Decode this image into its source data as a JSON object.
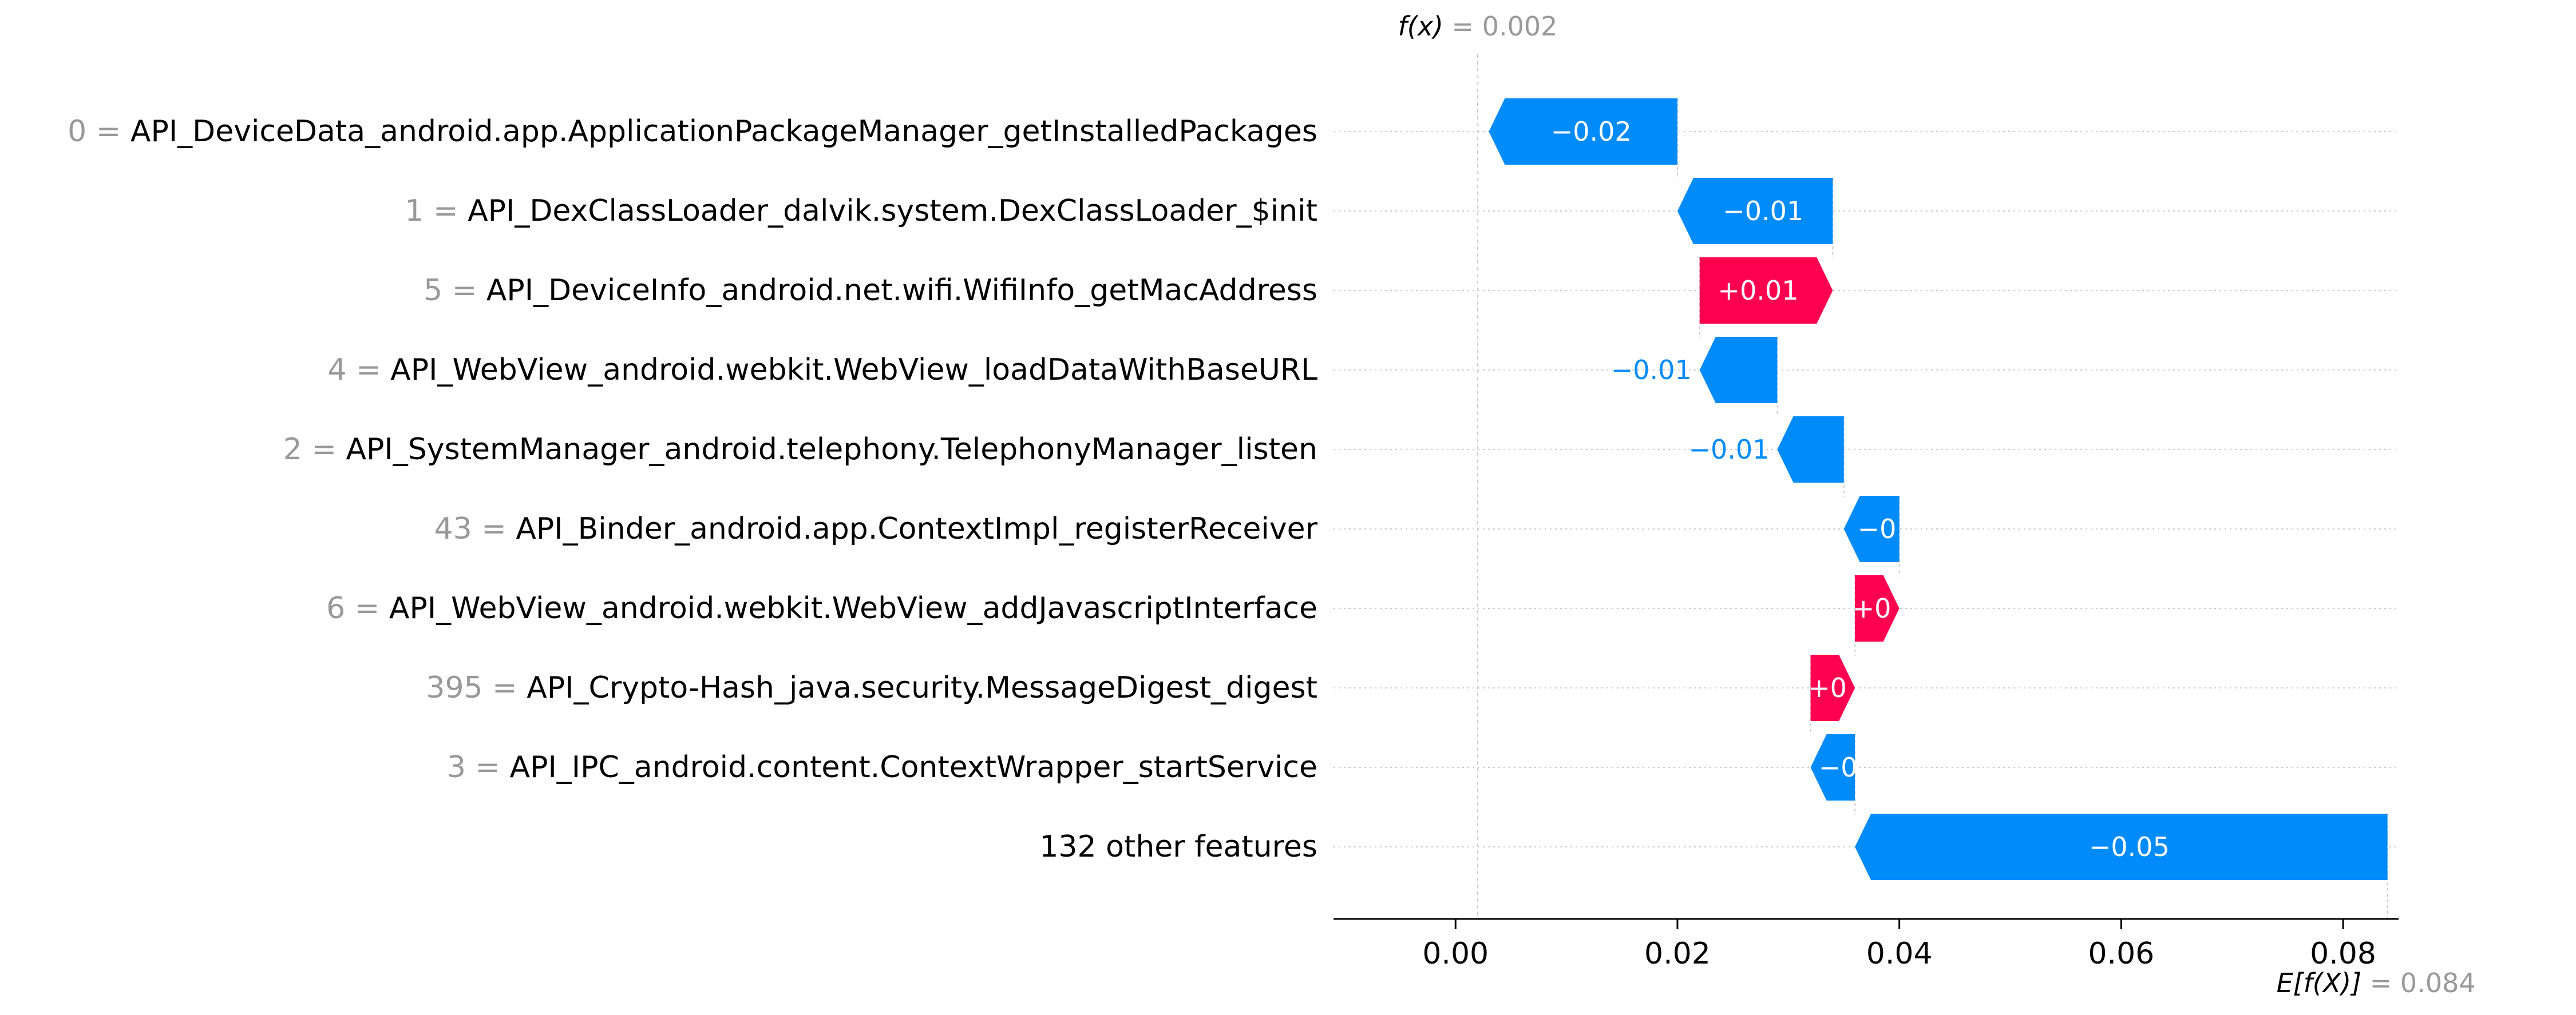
{
  "chart_data": {
    "type": "waterfall",
    "features": [
      {
        "value": "0",
        "name": "API_DeviceData_android.app.ApplicationPackageManager_getInstalledPackages",
        "shap": -0.017,
        "label": "−0.02"
      },
      {
        "value": "1",
        "name": "API_DexClassLoader_dalvik.system.DexClassLoader_$init",
        "shap": -0.014,
        "label": "−0.01"
      },
      {
        "value": "5",
        "name": "API_DeviceInfo_android.net.wifi.WifiInfo_getMacAddress",
        "shap": 0.012,
        "label": "+0.01"
      },
      {
        "value": "4",
        "name": "API_WebView_android.webkit.WebView_loadDataWithBaseURL",
        "shap": -0.007,
        "label": "−0.01"
      },
      {
        "value": "2",
        "name": "API_SystemManager_android.telephony.TelephonyManager_listen",
        "shap": -0.006,
        "label": "−0.01"
      },
      {
        "value": "43",
        "name": "API_Binder_android.app.ContextImpl_registerReceiver",
        "shap": -0.005,
        "label": "−0"
      },
      {
        "value": "6",
        "name": "API_WebView_android.webkit.WebView_addJavascriptInterface",
        "shap": 0.004,
        "label": "+0"
      },
      {
        "value": "395",
        "name": "API_Crypto-Hash_java.security.MessageDigest_digest",
        "shap": 0.004,
        "label": "+0"
      },
      {
        "value": "3",
        "name": "API_IPC_android.content.ContextWrapper_startService",
        "shap": -0.004,
        "label": "−0"
      },
      {
        "value": "",
        "name": "132 other features",
        "shap": -0.048,
        "label": "−0.05"
      }
    ],
    "fx_value": 0.002,
    "fx_label": "f(x)",
    "fx_text": " = 0.002",
    "base_value": 0.084,
    "base_label": "E[f(X)]",
    "base_text": " = 0.084",
    "xlim": [
      -0.011,
      0.085
    ],
    "x_ticks": [
      0.0,
      0.02,
      0.04,
      0.06,
      0.08
    ],
    "x_tick_labels": [
      "0.00",
      "0.02",
      "0.04",
      "0.06",
      "0.08"
    ],
    "colors": {
      "positive": "#ff0051",
      "negative": "#008bfb",
      "feature_value": "#999999",
      "gridline": "#cccccc"
    }
  }
}
